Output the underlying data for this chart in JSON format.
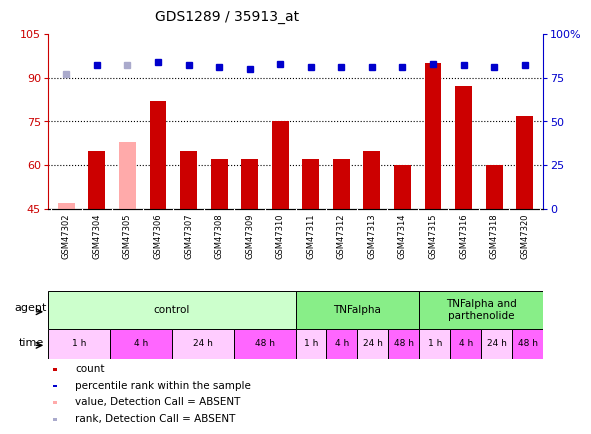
{
  "title": "GDS1289 / 35913_at",
  "samples": [
    "GSM47302",
    "GSM47304",
    "GSM47305",
    "GSM47306",
    "GSM47307",
    "GSM47308",
    "GSM47309",
    "GSM47310",
    "GSM47311",
    "GSM47312",
    "GSM47313",
    "GSM47314",
    "GSM47315",
    "GSM47316",
    "GSM47318",
    "GSM47320"
  ],
  "count_values": [
    47,
    65,
    68,
    82,
    65,
    62,
    62,
    75,
    62,
    62,
    65,
    60,
    95,
    87,
    60,
    77
  ],
  "count_absent": [
    true,
    false,
    true,
    false,
    false,
    false,
    false,
    false,
    false,
    false,
    false,
    false,
    false,
    false,
    false,
    false
  ],
  "percentile_values": [
    77,
    82,
    82,
    84,
    82,
    81,
    80,
    83,
    81,
    81,
    81,
    81,
    83,
    82,
    81,
    82
  ],
  "percentile_absent": [
    true,
    false,
    true,
    false,
    false,
    false,
    false,
    false,
    false,
    false,
    false,
    false,
    false,
    false,
    false,
    false
  ],
  "ylim_left": [
    45,
    105
  ],
  "ylim_right": [
    0,
    100
  ],
  "yticks_left": [
    45,
    60,
    75,
    90,
    105
  ],
  "yticks_right": [
    0,
    25,
    50,
    75,
    100
  ],
  "bar_color": "#cc0000",
  "bar_absent_color": "#ffaaaa",
  "dot_color": "#0000cc",
  "dot_absent_color": "#aaaacc",
  "agent_groups": [
    {
      "label": "control",
      "start": 0,
      "end": 8,
      "color": "#ccffcc"
    },
    {
      "label": "TNFalpha",
      "start": 8,
      "end": 12,
      "color": "#88ee88"
    },
    {
      "label": "TNFalpha and\nparthenolide",
      "start": 12,
      "end": 16,
      "color": "#88ee88"
    }
  ],
  "time_groups": [
    {
      "label": "1 h",
      "start": 0,
      "end": 2,
      "color": "#ffccff"
    },
    {
      "label": "4 h",
      "start": 2,
      "end": 4,
      "color": "#ff66ff"
    },
    {
      "label": "24 h",
      "start": 4,
      "end": 6,
      "color": "#ffccff"
    },
    {
      "label": "48 h",
      "start": 6,
      "end": 8,
      "color": "#ff66ff"
    },
    {
      "label": "1 h",
      "start": 8,
      "end": 9,
      "color": "#ffccff"
    },
    {
      "label": "4 h",
      "start": 9,
      "end": 10,
      "color": "#ff66ff"
    },
    {
      "label": "24 h",
      "start": 10,
      "end": 11,
      "color": "#ffccff"
    },
    {
      "label": "48 h",
      "start": 11,
      "end": 12,
      "color": "#ff66ff"
    },
    {
      "label": "1 h",
      "start": 12,
      "end": 13,
      "color": "#ffccff"
    },
    {
      "label": "4 h",
      "start": 13,
      "end": 14,
      "color": "#ff66ff"
    },
    {
      "label": "24 h",
      "start": 14,
      "end": 15,
      "color": "#ffccff"
    },
    {
      "label": "48 h",
      "start": 15,
      "end": 16,
      "color": "#ff66ff"
    }
  ],
  "legend_items": [
    {
      "label": "count",
      "color": "#cc0000"
    },
    {
      "label": "percentile rank within the sample",
      "color": "#0000cc"
    },
    {
      "label": "value, Detection Call = ABSENT",
      "color": "#ffaaaa"
    },
    {
      "label": "rank, Detection Call = ABSENT",
      "color": "#aaaacc"
    }
  ],
  "grid_yticks": [
    60,
    75,
    90
  ],
  "bg_color": "#ffffff",
  "axes_color_left": "#cc0000",
  "axes_color_right": "#0000cc",
  "sample_bg": "#c0c0c0",
  "sample_sep": "#ffffff"
}
